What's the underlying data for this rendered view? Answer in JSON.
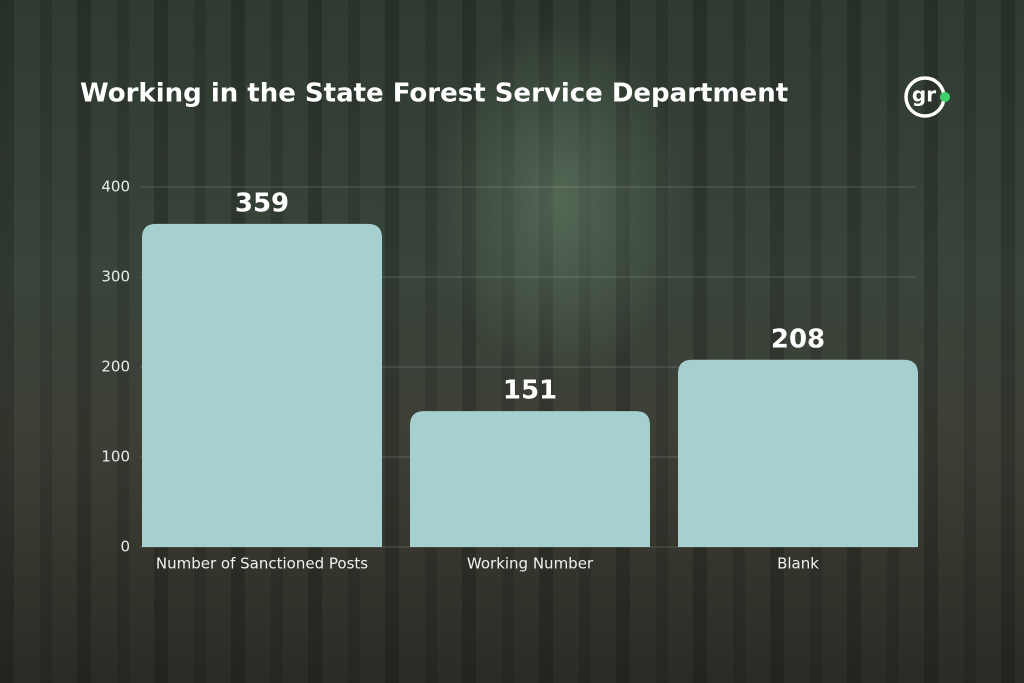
{
  "chart_data": {
    "type": "bar",
    "title": "Working in the State Forest Service Department",
    "categories": [
      "Number of Sanctioned Posts",
      "Working Number",
      "Blank"
    ],
    "values": [
      359,
      151,
      208
    ],
    "color": "#a6cfcf",
    "ylim": [
      0,
      400
    ],
    "yticks": [
      0,
      100,
      200,
      300,
      400
    ],
    "grid": true
  },
  "logo": "gr"
}
